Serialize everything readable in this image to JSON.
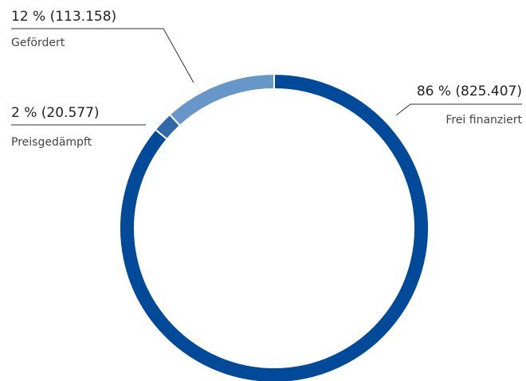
{
  "chart_data": {
    "type": "pie",
    "variant": "donut",
    "slices": [
      {
        "name": "Frei finanziert",
        "label": "86 % (825.407)",
        "percent": 86,
        "value": 825407,
        "color": "#004a99"
      },
      {
        "name": "Preisgedämpft",
        "label": "2 % (20.577)",
        "percent": 2,
        "value": 20577,
        "color": "#2e69a8"
      },
      {
        "name": "Gefördert",
        "label": "12 % (113.158)",
        "percent": 12,
        "value": 113158,
        "color": "#6796c8"
      }
    ]
  }
}
